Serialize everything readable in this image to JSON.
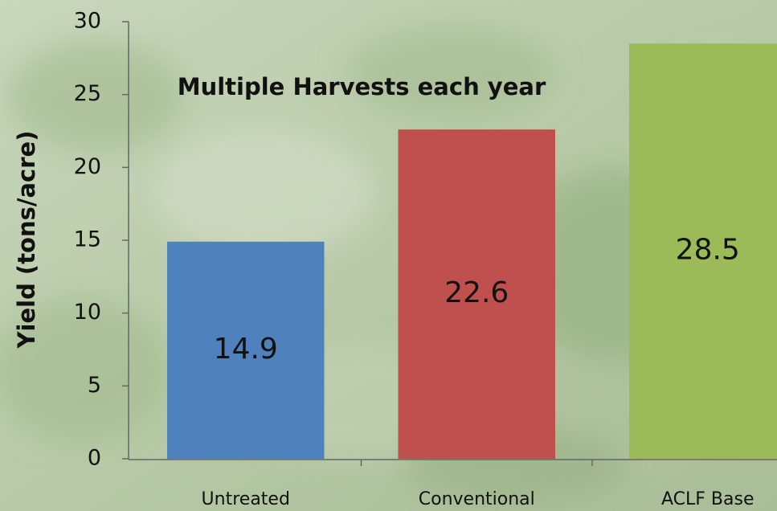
{
  "chart_data": {
    "type": "bar",
    "annotation": "Multiple Harvests each year",
    "y_label": "Yield (tons/acre)",
    "categories": [
      "Untreated",
      "Conventional",
      "ACLF Base"
    ],
    "values": [
      14.9,
      22.6,
      28.5
    ],
    "colors": [
      "#4f81bd",
      "#c0504d",
      "#9bbb59"
    ],
    "ylim": [
      0,
      30
    ],
    "yticks": [
      0,
      5,
      10,
      15,
      20,
      25,
      30
    ],
    "grid": false
  }
}
